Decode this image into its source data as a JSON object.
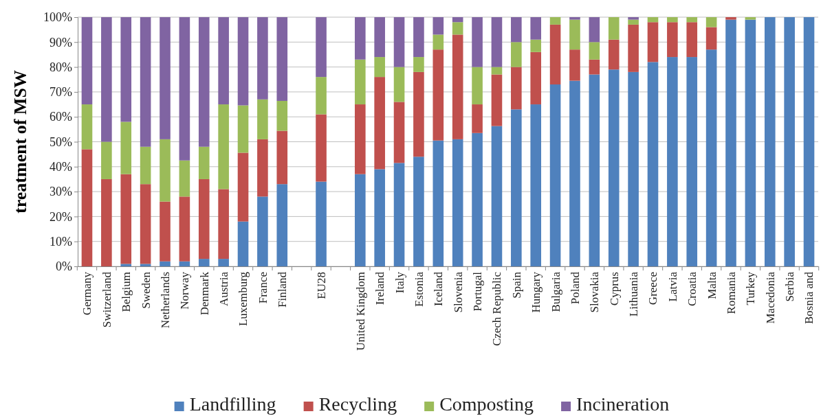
{
  "chart_data": {
    "type": "bar",
    "stacked": true,
    "ylabel": "treatment of MSW",
    "categories": [
      "Germany",
      "Switzerland",
      "Belgium",
      "Sweden",
      "Netherlands",
      "Norway",
      "Denmark",
      "Austria",
      "Luxemburg",
      "France",
      "Finland",
      null,
      "EU28",
      null,
      "United Kingdom",
      "Ireland",
      "Italy",
      "Estonia",
      "Iceland",
      "Slovenia",
      "Portugal",
      "Czech Republic",
      "Spain",
      "Hungary",
      "Bulgaria",
      "Poland",
      "Slovakia",
      "Cyprus",
      "Lithuania",
      "Greece",
      "Latvia",
      "Croatia",
      "Malta",
      "Romania",
      "Turkey",
      "Macedonia",
      "Serbia",
      "Bosnia and"
    ],
    "series": [
      {
        "name": "Landfilling",
        "color": "#4f81bd",
        "values": [
          0,
          0,
          1,
          1,
          2,
          2,
          3,
          3,
          18,
          28,
          33,
          null,
          34,
          null,
          37,
          39,
          41.5,
          44,
          50.5,
          51,
          53.5,
          56.3,
          63,
          65,
          73,
          74.5,
          77,
          79,
          78,
          82,
          84,
          84,
          87,
          99,
          99,
          100,
          100,
          100
        ]
      },
      {
        "name": "Recycling",
        "color": "#c0504d",
        "values": [
          47,
          35,
          36,
          32,
          24,
          26,
          32,
          28,
          27.6,
          23,
          21.4,
          null,
          27,
          null,
          28,
          37,
          24.5,
          34,
          36.5,
          42,
          11.5,
          20.7,
          17,
          21,
          24,
          12.5,
          6,
          12,
          19,
          16,
          14,
          14,
          9,
          1,
          0,
          0,
          0,
          0
        ]
      },
      {
        "name": "Composting",
        "color": "#9bbb59",
        "values": [
          18,
          15,
          21,
          15,
          25,
          14.5,
          13,
          34,
          19,
          16,
          12,
          null,
          15,
          null,
          18,
          8,
          14,
          6,
          6,
          5,
          15,
          3,
          10,
          5,
          3,
          12,
          7,
          9,
          2,
          2,
          2,
          2,
          4,
          0,
          1,
          0,
          0,
          0
        ]
      },
      {
        "name": "Incineration",
        "color": "#8064a2",
        "values": [
          35,
          50,
          42,
          52,
          49,
          57.5,
          52,
          35,
          35.4,
          33,
          33.6,
          null,
          24,
          null,
          17,
          16,
          20,
          16,
          7,
          2,
          20,
          20,
          10,
          9,
          0,
          1,
          10,
          0,
          1,
          0,
          0,
          0,
          0,
          0,
          0,
          0,
          0,
          0
        ]
      }
    ],
    "ylim": [
      0,
      100
    ],
    "yticks": [
      {
        "value": 0,
        "label": "0%"
      },
      {
        "value": 10,
        "label": "10%"
      },
      {
        "value": 20,
        "label": "20%"
      },
      {
        "value": 30,
        "label": "30%"
      },
      {
        "value": 40,
        "label": "40%"
      },
      {
        "value": 50,
        "label": "50%"
      },
      {
        "value": 60,
        "label": "60%"
      },
      {
        "value": 70,
        "label": "70%"
      },
      {
        "value": 80,
        "label": "80%"
      },
      {
        "value": 90,
        "label": "90%"
      },
      {
        "value": 100,
        "label": "100%"
      }
    ],
    "grid": "y",
    "legend": "bottom"
  }
}
